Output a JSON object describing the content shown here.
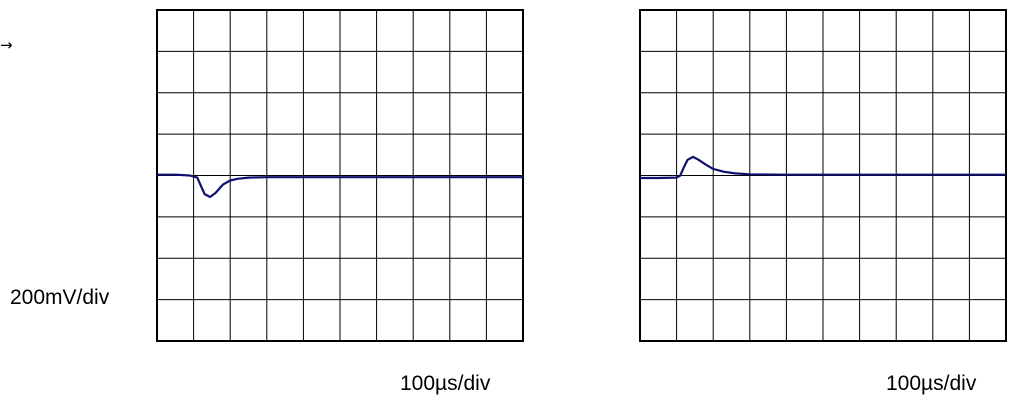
{
  "marker_text": "→",
  "vertical_scale_label": "200mV/div",
  "colors": {
    "trace": "#101070",
    "grid": "#000000",
    "background": "#ffffff"
  },
  "chart_data": [
    {
      "type": "line",
      "title": "",
      "xlabel": "100µs/div",
      "ylabel": "200mV/div",
      "grid": true,
      "divisions": {
        "x": 10,
        "y": 8
      },
      "xlim": [
        0,
        10
      ],
      "ylim": [
        -4,
        4
      ],
      "series": [
        {
          "x": [
            0,
            0.5,
            0.9,
            1.1,
            1.2,
            1.3,
            1.45,
            1.6,
            1.8,
            2.0,
            2.2,
            2.5,
            3.0,
            4.0,
            5.0,
            6.0,
            7.0,
            8.0,
            9.0,
            10.0
          ],
          "values": [
            0.02,
            0.02,
            0.0,
            -0.05,
            -0.25,
            -0.45,
            -0.52,
            -0.42,
            -0.22,
            -0.12,
            -0.08,
            -0.05,
            -0.04,
            -0.04,
            -0.04,
            -0.04,
            -0.04,
            -0.04,
            -0.04,
            -0.04
          ]
        }
      ]
    },
    {
      "type": "line",
      "title": "",
      "xlabel": "100µs/div",
      "ylabel": "",
      "grid": true,
      "divisions": {
        "x": 10,
        "y": 8
      },
      "xlim": [
        0,
        10
      ],
      "ylim": [
        -4,
        4
      ],
      "series": [
        {
          "x": [
            0,
            0.5,
            1.0,
            1.1,
            1.2,
            1.3,
            1.45,
            1.6,
            1.8,
            2.0,
            2.3,
            2.6,
            3.0,
            4.0,
            5.0,
            6.0,
            7.0,
            8.0,
            9.0,
            10.0
          ],
          "values": [
            -0.06,
            -0.06,
            -0.05,
            0.0,
            0.2,
            0.38,
            0.45,
            0.38,
            0.26,
            0.16,
            0.09,
            0.05,
            0.03,
            0.02,
            0.02,
            0.02,
            0.02,
            0.02,
            0.02,
            0.02
          ]
        }
      ]
    }
  ]
}
